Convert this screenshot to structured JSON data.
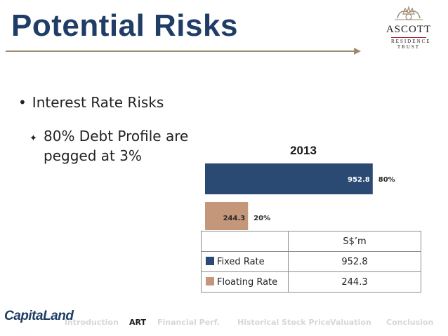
{
  "header": {
    "title": "Potential Risks"
  },
  "logo": {
    "name": "ASCOTT",
    "subline1": "RESIDENCE",
    "subline2": "TRUST"
  },
  "bullets": {
    "main": "Interest Rate Risks",
    "sub": "80% Debt Profile are pegged at 3%"
  },
  "chart_data": {
    "type": "bar",
    "orientation": "horizontal",
    "title": "2013",
    "categories": [
      "Fixed Rate",
      "Floating Rate"
    ],
    "values": [
      952.8,
      244.3
    ],
    "percent_labels": [
      "80%",
      "20%"
    ],
    "colors": [
      "#2a4a73",
      "#c4967a"
    ],
    "xlim": [
      0,
      1197.1
    ],
    "unit": "S$'m"
  },
  "table": {
    "header": "S$’m",
    "rows": [
      {
        "label": "Fixed Rate",
        "value": "952.8",
        "color": "#2a4a73"
      },
      {
        "label": "Floating Rate",
        "value": "244.3",
        "color": "#c4967a"
      }
    ]
  },
  "footer": {
    "company": "CapitaLand",
    "nav": [
      {
        "label": "Introduction",
        "active": false
      },
      {
        "label": "ART",
        "active": true
      },
      {
        "label": "Financial Perf.",
        "active": false
      },
      {
        "label": "Historical Stock Price",
        "active": false
      },
      {
        "label": "Valuation",
        "active": false
      },
      {
        "label": "Conclusion",
        "active": false
      }
    ]
  }
}
